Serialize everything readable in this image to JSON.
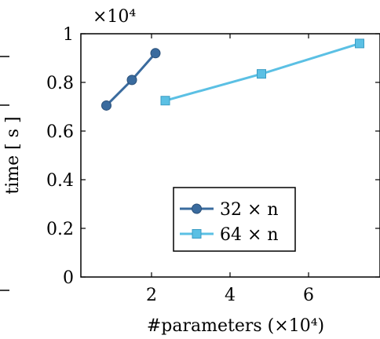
{
  "chart_data": {
    "type": "line",
    "ylabel": "time [ s ]",
    "xlabel": "#parameters (×10⁴)",
    "y_multiplier": "×10⁴",
    "xlim": [
      0,
      8
    ],
    "ylim": [
      0,
      1
    ],
    "x_ticks": [
      2,
      4,
      6
    ],
    "x_tick_labels": [
      "2",
      "4",
      "6"
    ],
    "y_ticks": [
      0,
      0.2,
      0.4,
      0.6,
      0.8,
      1
    ],
    "y_tick_labels": [
      "0",
      "0.2",
      "0.4",
      "0.6",
      "0.8",
      "1"
    ],
    "grid": false,
    "legend_position": "lower-right",
    "series": [
      {
        "name": "32 × n",
        "color": "#3a6b9e",
        "marker": "circle",
        "x": [
          0.85,
          1.5,
          2.1
        ],
        "y": [
          0.705,
          0.81,
          0.92
        ]
      },
      {
        "name": "64 × n",
        "color": "#5bc0e4",
        "marker": "square",
        "x": [
          2.35,
          4.8,
          7.3
        ],
        "y": [
          0.725,
          0.835,
          0.96
        ]
      }
    ]
  }
}
